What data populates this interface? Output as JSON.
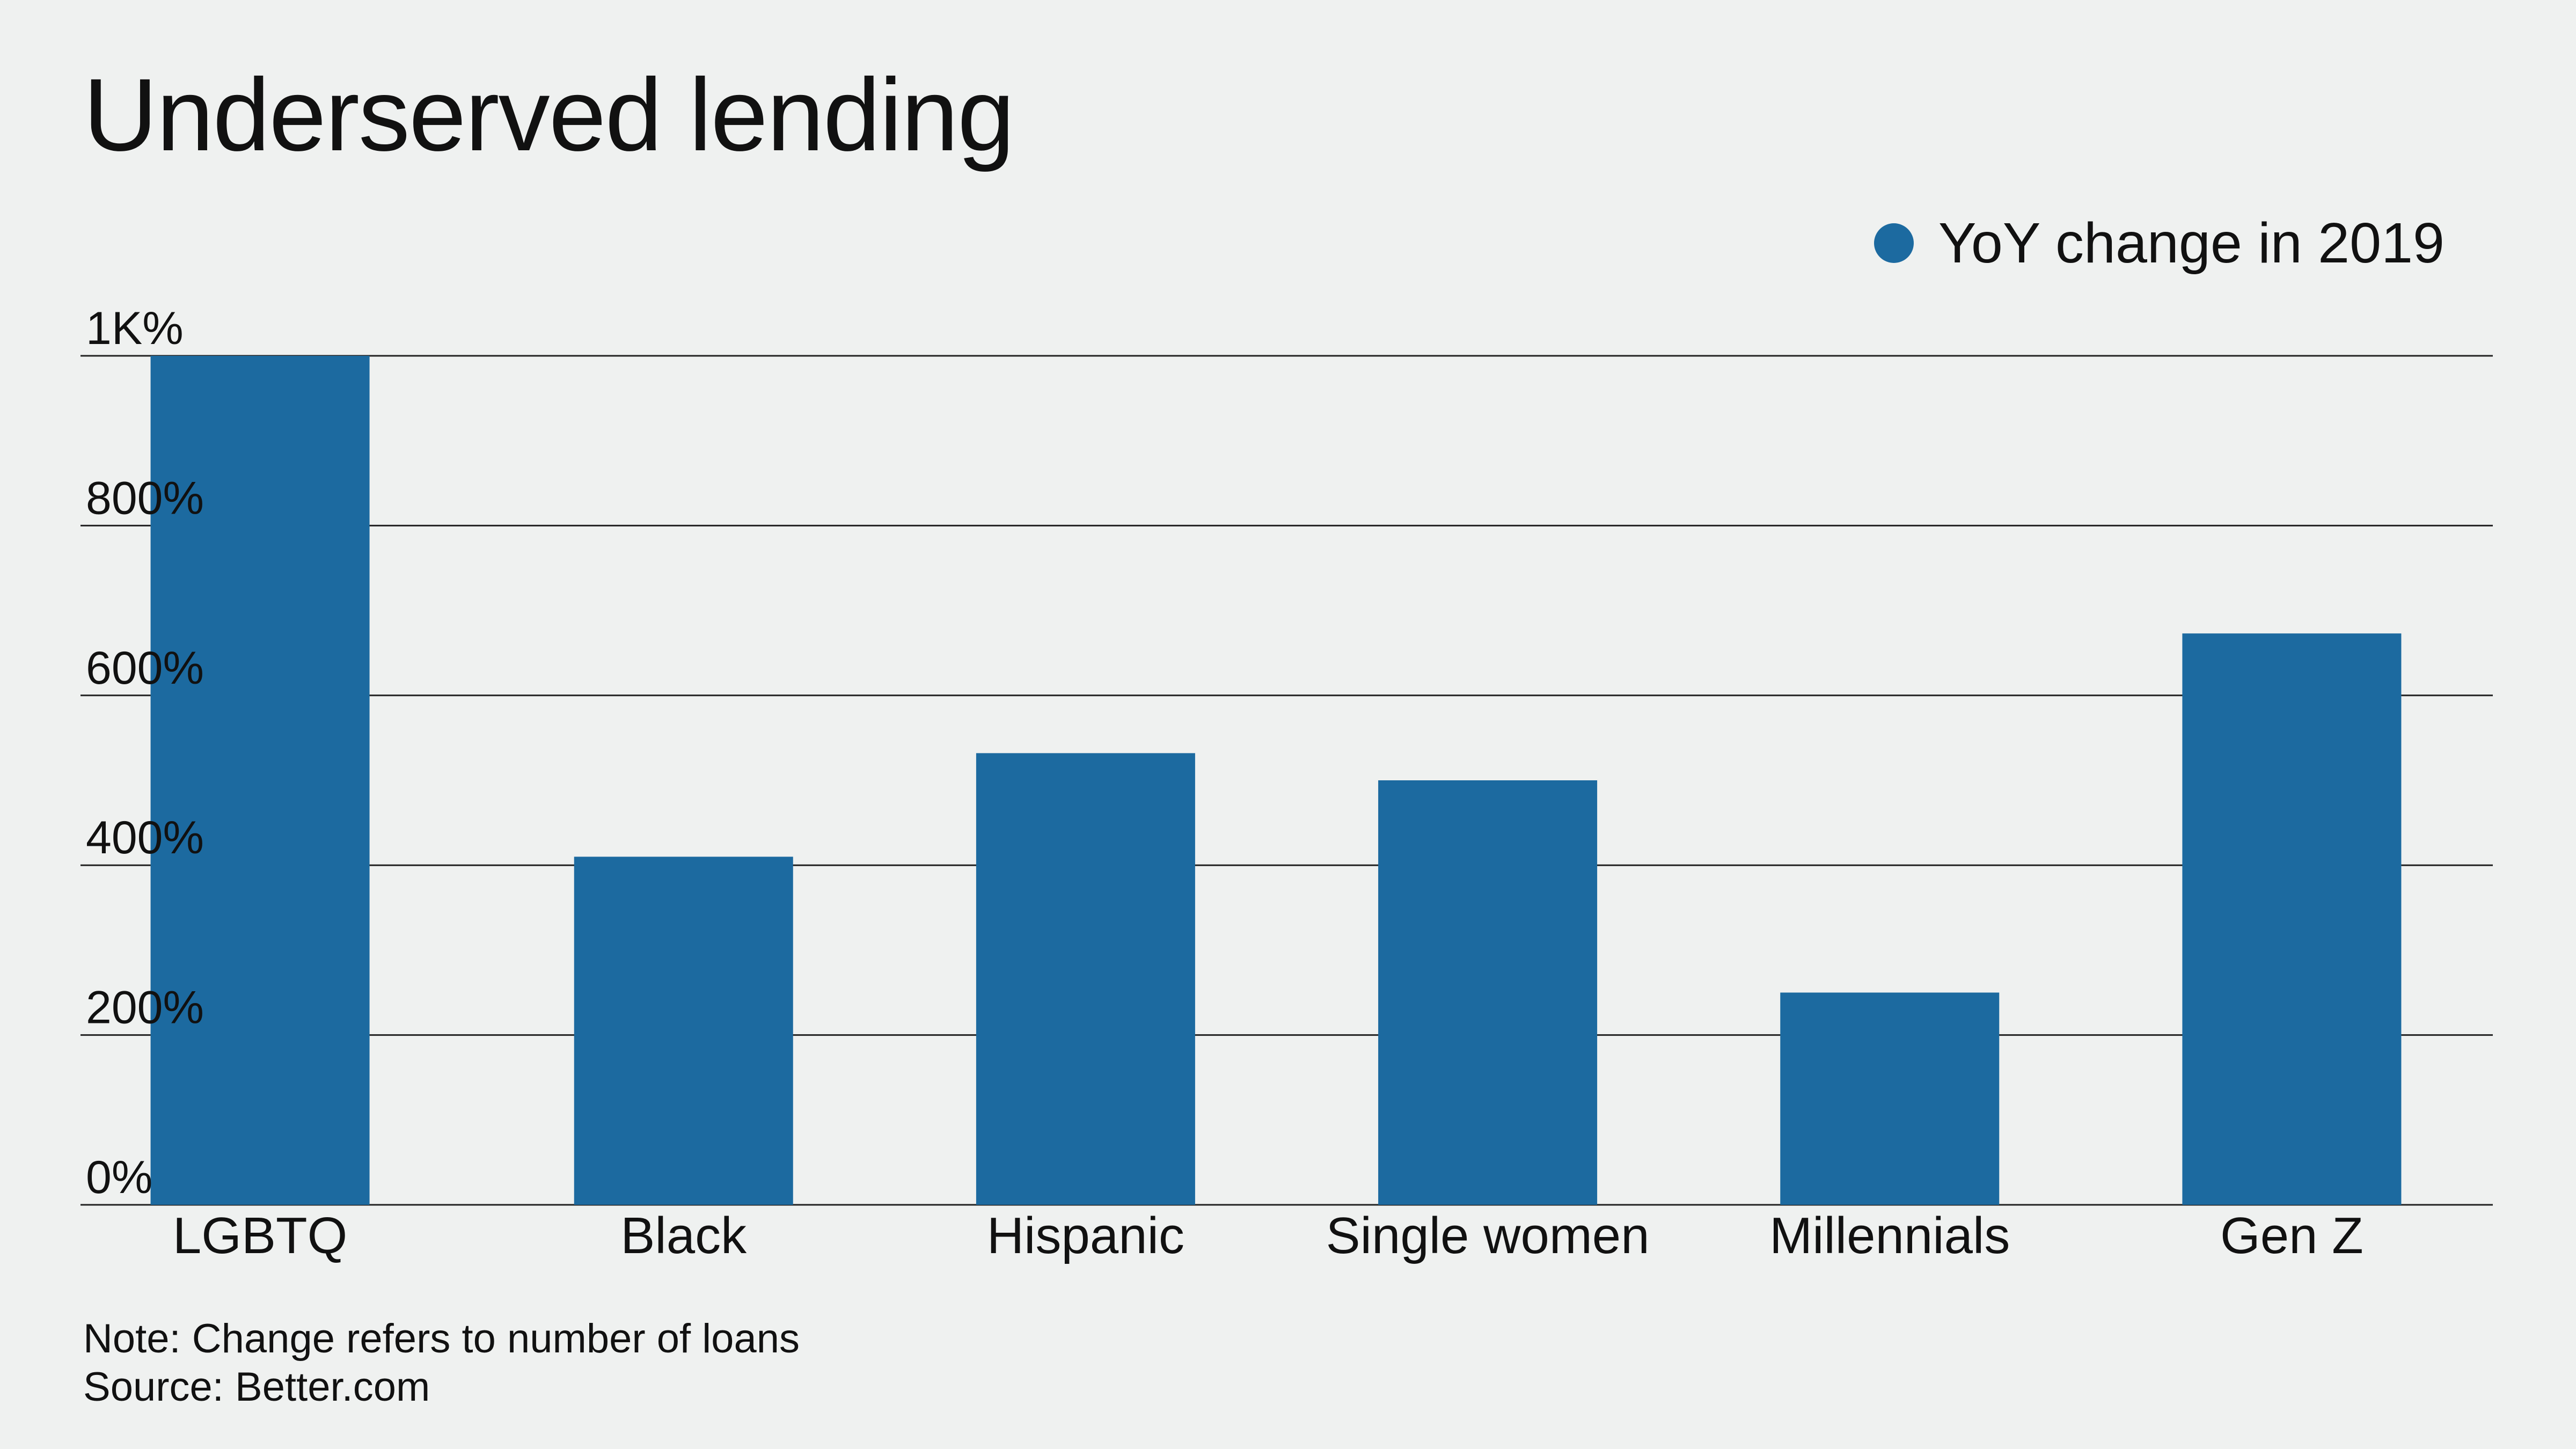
{
  "title": "Underserved lending",
  "legend": {
    "label": "YoY change in 2019"
  },
  "notes": {
    "note": "Note: Change refers to number of loans",
    "source": "Source: Better.com"
  },
  "colors": {
    "background": "#eff1f0",
    "bar": "#1c6aa0",
    "grid": "#222222",
    "text": "#111111"
  },
  "chart_data": {
    "type": "bar",
    "title": "Underserved lending",
    "xlabel": "",
    "ylabel": "",
    "categories": [
      "LGBTQ",
      "Black",
      "Hispanic",
      "Single women",
      "Millennials",
      "Gen Z"
    ],
    "series": [
      {
        "name": "YoY change in 2019",
        "values": [
          1000,
          410,
          532,
          500,
          250,
          673
        ]
      }
    ],
    "ylim": [
      0,
      1000
    ],
    "yticks": [
      0,
      200,
      400,
      600,
      800,
      1000
    ],
    "ytick_labels": [
      "0%",
      "200%",
      "400%",
      "600%",
      "800%",
      "1K%"
    ],
    "grid": true,
    "legend_position": "top-right"
  }
}
